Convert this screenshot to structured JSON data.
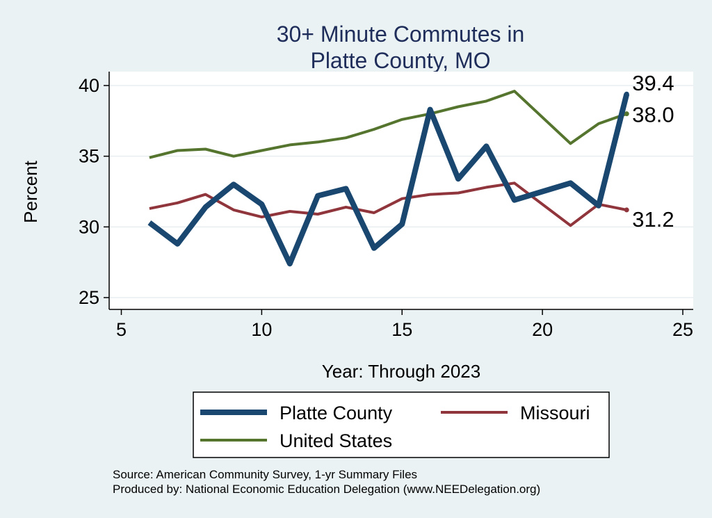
{
  "chart_data": {
    "type": "line",
    "title": [
      "30+ Minute Commutes in",
      "Platte County, MO"
    ],
    "xlabel": "Year: Through 2023",
    "ylabel": "Percent",
    "xlim": [
      5,
      25
    ],
    "ylim": [
      25,
      40
    ],
    "xticks": [
      5,
      10,
      15,
      20,
      25
    ],
    "yticks": [
      25,
      30,
      35,
      40
    ],
    "grid": true,
    "legend_position": "bottom",
    "series": [
      {
        "name": "Platte County",
        "color": "#1a476f",
        "x": [
          6,
          7,
          8,
          9,
          10,
          11,
          12,
          13,
          14,
          15,
          16,
          17,
          18,
          19,
          21,
          22,
          23
        ],
        "y": [
          30.3,
          28.8,
          31.4,
          33.0,
          31.6,
          27.4,
          32.2,
          32.7,
          28.5,
          30.2,
          38.3,
          33.4,
          35.7,
          31.9,
          33.1,
          31.5,
          39.4
        ],
        "end_label": "39.4"
      },
      {
        "name": "Missouri",
        "color": "#90353b",
        "x": [
          6,
          7,
          8,
          9,
          10,
          11,
          12,
          13,
          14,
          15,
          16,
          17,
          18,
          19,
          21,
          22,
          23
        ],
        "y": [
          31.3,
          31.7,
          32.3,
          31.2,
          30.7,
          31.1,
          30.9,
          31.4,
          31.0,
          32.0,
          32.3,
          32.4,
          32.8,
          33.1,
          30.1,
          31.6,
          31.2
        ],
        "end_label": "31.2"
      },
      {
        "name": "United States",
        "color": "#55752f",
        "x": [
          6,
          7,
          8,
          9,
          10,
          11,
          12,
          13,
          14,
          15,
          16,
          17,
          18,
          19,
          21,
          22,
          23
        ],
        "y": [
          34.9,
          35.4,
          35.5,
          35.0,
          35.4,
          35.8,
          36.0,
          36.3,
          36.9,
          37.6,
          38.0,
          38.5,
          38.9,
          39.6,
          35.9,
          37.3,
          38.0
        ],
        "end_label": "38.0"
      }
    ]
  },
  "notes": [
    "Source: American Community Survey, 1-yr Summary Files",
    "Produced by: National Economic Education Delegation (www.NEEDelegation.org)"
  ]
}
